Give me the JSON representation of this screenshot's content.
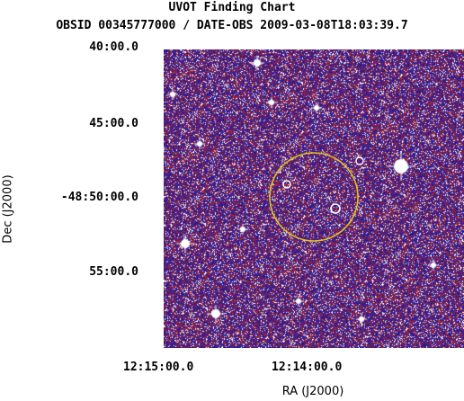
{
  "chart": {
    "title": "UVOT Finding Chart",
    "subtitle": "OBSID 00345777000 / DATE-OBS 2009-03-08T18:03:39.7",
    "xlabel": "RA (J2000)",
    "ylabel": "Dec (J2000)",
    "dec_ticks": [
      "40:00.0",
      "45:00.0",
      "-48:50:00.0",
      "55:00.0"
    ],
    "ra_ticks": [
      "12:15:00.0",
      "12:14:00.0"
    ]
  },
  "colors": {
    "background": "#ffffff",
    "sky_blue": "#2a1fa8",
    "sky_red": "#b0262a",
    "sky_dark": "#4b1f6e",
    "star": "#ffffff",
    "circle": "#e3c21a"
  }
}
